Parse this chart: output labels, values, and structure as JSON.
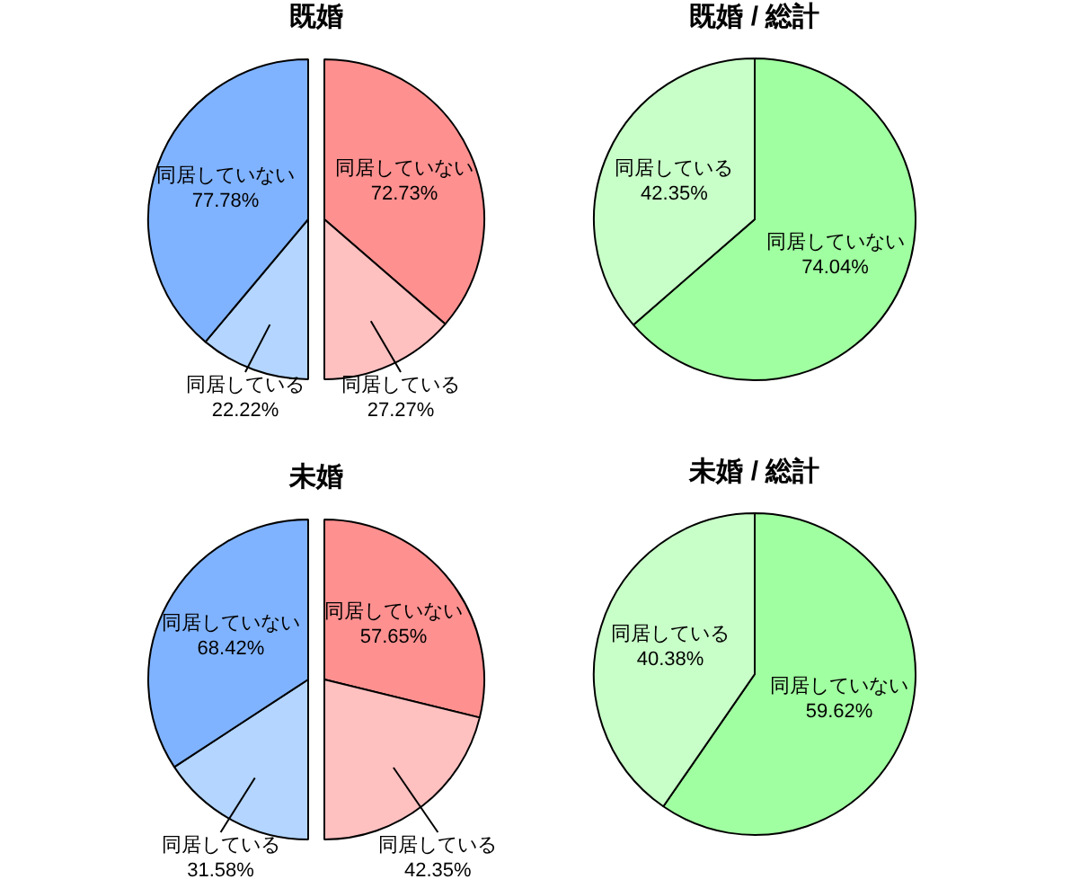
{
  "chart_data": [
    {
      "type": "pie",
      "title": "既婚",
      "categories": [
        "同居している",
        "同居していない"
      ],
      "values": [
        22.22,
        77.78
      ],
      "colors": [
        "#b3d5ff",
        "#80b3ff"
      ],
      "value_labels": [
        "22.22%",
        "77.78%"
      ]
    },
    {
      "type": "pie",
      "categories": [
        "同居していない",
        "同居している"
      ],
      "values": [
        72.73,
        27.27
      ],
      "colors": [
        "#ff9090",
        "#ffc0c0"
      ],
      "value_labels": [
        "72.73%",
        "27.27%"
      ]
    },
    {
      "type": "pie",
      "title": "既婚 / 総計",
      "categories": [
        "同居していない",
        "同居している"
      ],
      "values": [
        74.04,
        42.35
      ],
      "colors": [
        "#a0ffa0",
        "#c8ffc8"
      ],
      "value_labels": [
        "74.04%",
        "42.35%"
      ]
    },
    {
      "type": "pie",
      "title": "未婚",
      "categories": [
        "同居している",
        "同居していない"
      ],
      "values": [
        31.58,
        68.42
      ],
      "colors": [
        "#b3d5ff",
        "#80b3ff"
      ],
      "value_labels": [
        "31.58%",
        "68.42%"
      ]
    },
    {
      "type": "pie",
      "categories": [
        "同居していない",
        "同居している"
      ],
      "values": [
        57.65,
        42.35
      ],
      "colors": [
        "#ff9090",
        "#ffc0c0"
      ],
      "value_labels": [
        "57.65%",
        "42.35%"
      ]
    },
    {
      "type": "pie",
      "title": "未婚 / 総計",
      "categories": [
        "同居していない",
        "同居している"
      ],
      "values": [
        59.62,
        40.38
      ],
      "colors": [
        "#a0ffa0",
        "#c8ffc8"
      ],
      "value_labels": [
        "59.62%",
        "40.38%"
      ]
    }
  ]
}
